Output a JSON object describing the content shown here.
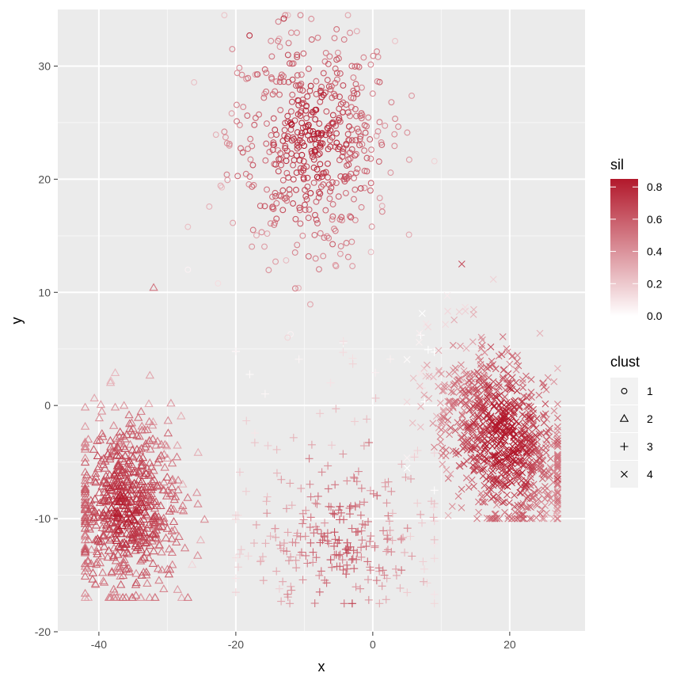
{
  "chart_data": {
    "type": "scatter",
    "xlabel": "x",
    "ylabel": "y",
    "xlim": [
      -46,
      31
    ],
    "ylim": [
      -20,
      35
    ],
    "x_ticks": [
      -40,
      -20,
      0,
      20
    ],
    "y_ticks": [
      -20,
      -10,
      0,
      10,
      20,
      30
    ],
    "x_tick_labels": [
      "-40",
      "-20",
      "0",
      "20"
    ],
    "y_tick_labels": [
      "-20",
      "-10",
      "0",
      "10",
      "20",
      "30"
    ],
    "grid": true,
    "panel_color": "#ebebeb",
    "color_scale": {
      "title": "sil",
      "low_color": "#ffffff",
      "high_color": "#b2182b",
      "range": [
        0.0,
        0.85
      ],
      "breaks": [
        0.0,
        0.2,
        0.4,
        0.6,
        0.8
      ],
      "break_labels": [
        "0.0",
        "0.2",
        "0.4",
        "0.6",
        "0.8"
      ]
    },
    "shape_legend": {
      "title": "clust",
      "entries": [
        {
          "label": "1",
          "shape": "circle"
        },
        {
          "label": "2",
          "shape": "triangle"
        },
        {
          "label": "3",
          "shape": "plus"
        },
        {
          "label": "4",
          "shape": "cross"
        }
      ]
    },
    "clusters": [
      {
        "clust": "1",
        "shape": "circle",
        "n_points": 520,
        "center": [
          -9,
          23.5
        ],
        "spread": [
          6,
          5
        ],
        "x_range": [
          -27,
          9
        ],
        "y_range": [
          6,
          34.5
        ],
        "sil_typical": 0.7
      },
      {
        "clust": "2",
        "shape": "triangle",
        "n_points": 640,
        "center": [
          -36,
          -9
        ],
        "spread": [
          4,
          4
        ],
        "x_range": [
          -42,
          -20
        ],
        "y_range": [
          -17,
          10.5
        ],
        "sil_typical": 0.7
      },
      {
        "clust": "3",
        "shape": "plus",
        "n_points": 280,
        "center": [
          -5,
          -12
        ],
        "spread": [
          8,
          3
        ],
        "x_range": [
          -20,
          9
        ],
        "y_range": [
          -17.5,
          6.5
        ],
        "sil_typical": 0.55
      },
      {
        "clust": "4",
        "shape": "cross",
        "n_points": 900,
        "center": [
          19,
          -3
        ],
        "spread": [
          4,
          3
        ],
        "x_range": [
          5,
          27
        ],
        "y_range": [
          -10,
          13
        ],
        "sil_typical": 0.8
      }
    ],
    "sample_points": [
      {
        "clust": "1",
        "x": -13,
        "y": 34.2,
        "sil": 0.75
      },
      {
        "clust": "1",
        "x": -18,
        "y": 32.7,
        "sil": 0.75
      },
      {
        "clust": "1",
        "x": -12,
        "y": 25,
        "sil": 0.85
      },
      {
        "clust": "1",
        "x": -27,
        "y": 12,
        "sil": 0.05
      },
      {
        "clust": "1",
        "x": -12,
        "y": 6.3,
        "sil": 0.05
      },
      {
        "clust": "2",
        "x": -37,
        "y": -11,
        "sil": 0.8
      },
      {
        "clust": "2",
        "x": -32,
        "y": 10.4,
        "sil": 0.5
      },
      {
        "clust": "2",
        "x": -27,
        "y": -17,
        "sil": 0.5
      },
      {
        "clust": "3",
        "x": -3,
        "y": -17.5,
        "sil": 0.7
      },
      {
        "clust": "3",
        "x": -20,
        "y": 4.8,
        "sil": 0.05
      },
      {
        "clust": "4",
        "x": 20,
        "y": -4,
        "sil": 0.85
      },
      {
        "clust": "4",
        "x": 13,
        "y": 12.5,
        "sil": 0.65
      },
      {
        "clust": "4",
        "x": 27,
        "y": -6.5,
        "sil": 0.7
      }
    ]
  }
}
